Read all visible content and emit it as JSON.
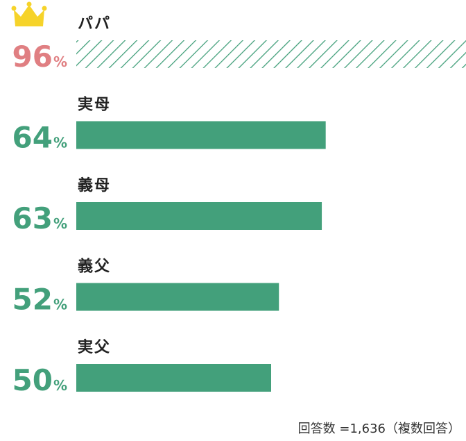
{
  "chart_data": {
    "type": "bar",
    "orientation": "horizontal",
    "categories": [
      "パパ",
      "実母",
      "義母",
      "義父",
      "実父"
    ],
    "values": [
      96,
      64,
      63,
      52,
      50
    ],
    "value_suffix": "%",
    "highlight_index": 0,
    "highlight_icon": "crown-icon",
    "colors": {
      "bar": "#43a07b",
      "highlight_text": "#e07f82",
      "highlight_hatch": "#43a07b",
      "highlight_icon": "#f6d32a",
      "label": "#222222"
    }
  },
  "footnote": "回答数 =1,636（複数回答）"
}
